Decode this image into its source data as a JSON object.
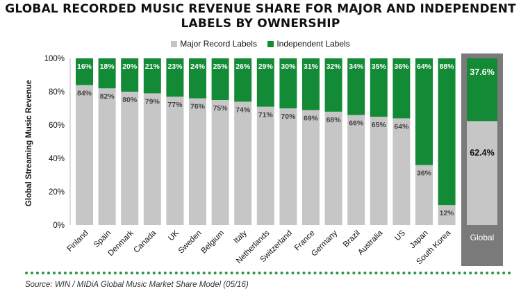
{
  "title_line1": "GLOBAL RECORDED MUSIC REVENUE SHARE FOR MAJOR AND INDEPENDENT",
  "title_line2": "LABELS BY OWNERSHIP",
  "source": "Source: WIN / MIDiA Global Music Market Share Model (05/16)",
  "colors": {
    "major": "#c6c6c6",
    "independent": "#138a36",
    "global_box": "#7a7a7a",
    "dots": "#1e9a3c"
  },
  "chart_data": {
    "type": "bar",
    "stacked": true,
    "title": "GLOBAL RECORDED MUSIC REVENUE SHARE FOR MAJOR AND INDEPENDENT LABELS BY OWNERSHIP",
    "ylabel": "Global Streaming Music Revenue",
    "ylim": [
      0,
      100
    ],
    "yticks": [
      "0%",
      "20%",
      "40%",
      "60%",
      "80%",
      "100%"
    ],
    "legend_position": "top-center",
    "categories": [
      "Finland",
      "Spain",
      "Denmark",
      "Canada",
      "UK",
      "Sweden",
      "Belgium",
      "Italy",
      "Netherlands",
      "Switzerland",
      "France",
      "Germany",
      "Brazil",
      "Australia",
      "US",
      "Japan",
      "South Korea",
      "Global"
    ],
    "series": [
      {
        "name": "Major Record Labels",
        "values": [
          84,
          82,
          80,
          79,
          77,
          76,
          75,
          74,
          71,
          70,
          69,
          68,
          66,
          65,
          64,
          36,
          12,
          62.4
        ],
        "labels": [
          "84%",
          "82%",
          "80%",
          "79%",
          "77%",
          "76%",
          "75%",
          "74%",
          "71%",
          "70%",
          "69%",
          "68%",
          "66%",
          "65%",
          "64%",
          "36%",
          "12%",
          "62.4%"
        ]
      },
      {
        "name": "Independent Labels",
        "values": [
          16,
          18,
          20,
          21,
          23,
          24,
          25,
          26,
          29,
          30,
          31,
          32,
          34,
          35,
          36,
          64,
          88,
          37.6
        ],
        "labels": [
          "16%",
          "18%",
          "20%",
          "21%",
          "23%",
          "24%",
          "25%",
          "26%",
          "29%",
          "30%",
          "31%",
          "32%",
          "34%",
          "35%",
          "36%",
          "64%",
          "88%",
          "37.6%"
        ]
      }
    ]
  }
}
